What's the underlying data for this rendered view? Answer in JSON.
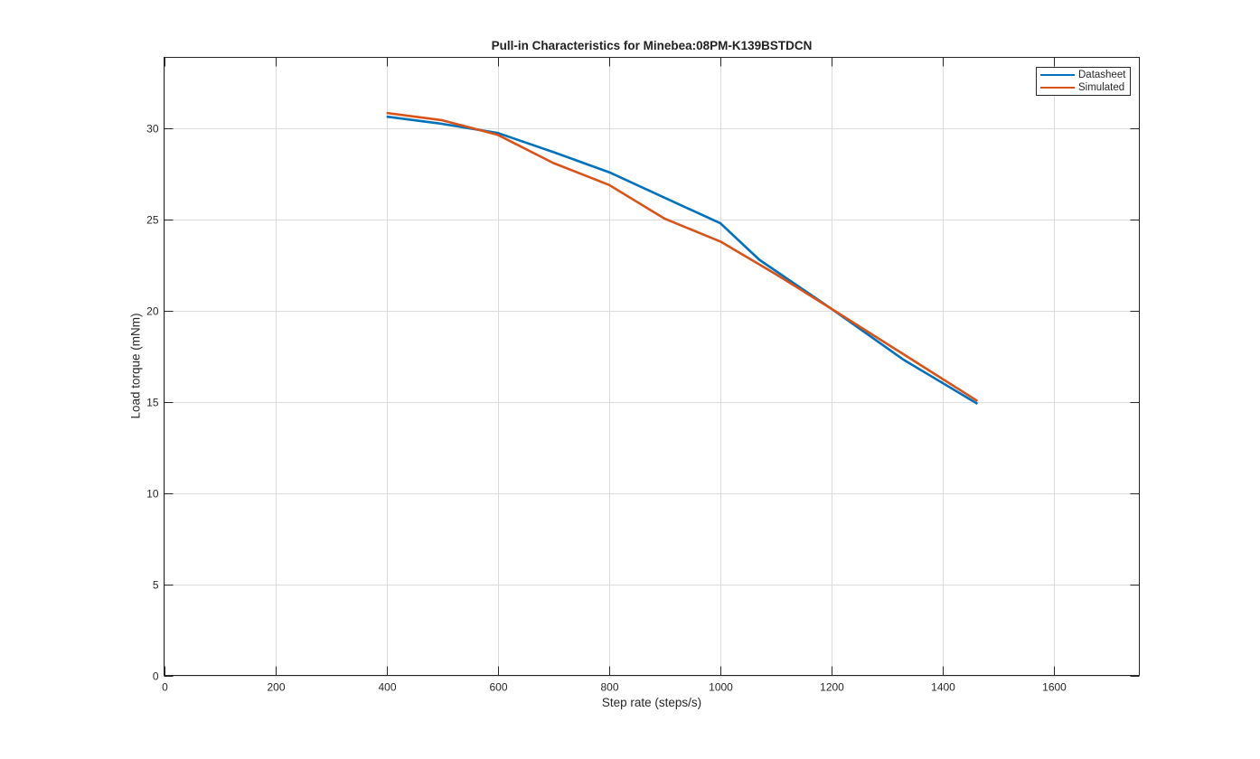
{
  "chart_data": {
    "type": "line",
    "title": "Pull-in Characteristics for Minebea:08PM-K139BSTDCN",
    "xlabel": "Step rate (steps/s)",
    "ylabel": "Load torque (mNm)",
    "xlim": [
      0,
      1753
    ],
    "ylim": [
      0,
      33.9
    ],
    "xticks": [
      0,
      200,
      400,
      600,
      800,
      1000,
      1200,
      1400,
      1600
    ],
    "yticks": [
      0,
      5,
      10,
      15,
      20,
      25,
      30
    ],
    "grid": true,
    "legend_position": "northeast",
    "series": [
      {
        "name": "Datasheet",
        "color": "#0072BD",
        "x": [
          400,
          500,
          600,
          700,
          800,
          900,
          1000,
          1070,
          1200,
          1330,
          1462
        ],
        "y": [
          30.65,
          30.25,
          29.75,
          28.7,
          27.6,
          26.2,
          24.8,
          22.8,
          20.1,
          17.3,
          14.9
        ]
      },
      {
        "name": "Simulated",
        "color": "#D95319",
        "x": [
          400,
          500,
          600,
          700,
          800,
          900,
          1000,
          1100,
          1200,
          1330,
          1462
        ],
        "y": [
          30.85,
          30.45,
          29.65,
          28.1,
          26.9,
          25.05,
          23.8,
          22.0,
          20.1,
          17.6,
          15.05
        ]
      }
    ]
  }
}
